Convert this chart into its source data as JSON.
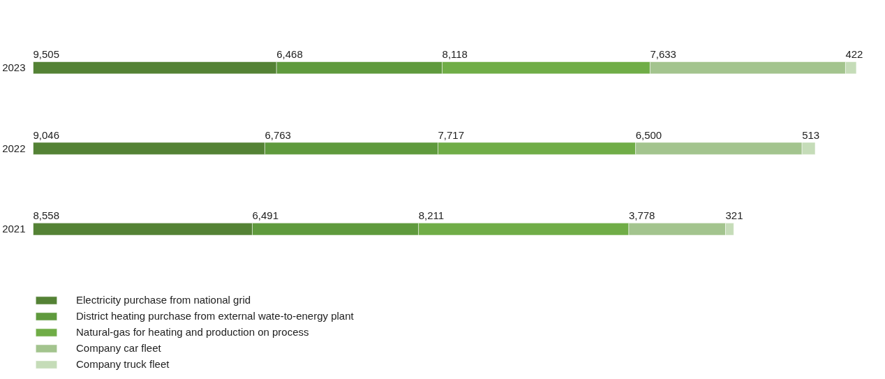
{
  "chart_data": {
    "type": "bar",
    "orientation": "horizontal",
    "stacked": true,
    "legend": "bottom",
    "tick_labels": "y",
    "categories": [
      "2023",
      "2022",
      "2021"
    ],
    "series": [
      {
        "name": "Electricity purchase from national grid",
        "color": "#548235",
        "values": [
          9505,
          9046,
          8558
        ],
        "value_labels": [
          "9,505",
          "9,046",
          "8,558"
        ]
      },
      {
        "name": "District heating purchase from external wate-to-energy plant",
        "color": "#5f9a3d",
        "values": [
          6468,
          6763,
          6491
        ],
        "value_labels": [
          "6,468",
          "6,763",
          "6,491"
        ]
      },
      {
        "name": "Natural-gas for heating and production on process",
        "color": "#70ad47",
        "values": [
          8118,
          7717,
          8211
        ],
        "value_labels": [
          "8,118",
          "7,717",
          "8,211"
        ]
      },
      {
        "name": "Company car fleet",
        "color": "#a3c48e",
        "values": [
          7633,
          6500,
          3778
        ],
        "value_labels": [
          "7,633",
          "6,500",
          "3,778"
        ]
      },
      {
        "name": "Company truck fleet",
        "color": "#c5dcb8",
        "values": [
          422,
          513,
          321
        ],
        "value_labels": [
          "422",
          "513",
          "321"
        ]
      }
    ]
  }
}
